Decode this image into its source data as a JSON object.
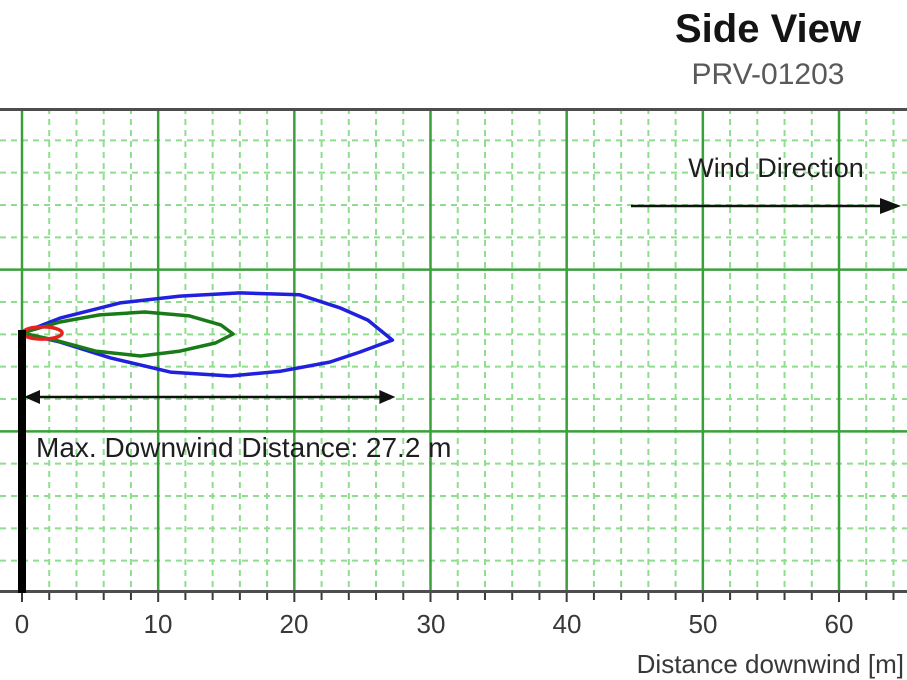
{
  "header": {
    "title": "Side View",
    "subtitle": "PRV-01203"
  },
  "annotations": {
    "wind_direction": "Wind Direction",
    "max_downwind": "Max. Downwind Distance: 27.2 m"
  },
  "x_axis": {
    "label": "Distance downwind [m]",
    "tick_labels": [
      "0",
      "10",
      "20",
      "30",
      "40",
      "50",
      "60"
    ]
  },
  "colors": {
    "grid_major": "#3aa03a",
    "grid_minor": "#8ede8e",
    "axis_border": "#4d4d4d",
    "tick": "#3a3a3a",
    "arrow": "#111111",
    "stack": "#000000",
    "contour_red": "#e82020",
    "contour_green": "#1a7a1a",
    "contour_blue": "#2020dd"
  },
  "chart_data": {
    "type": "line",
    "title": "Side View",
    "subtitle": "PRV-01203",
    "xlabel": "Distance downwind [m]",
    "x_ticks": [
      0,
      10,
      20,
      30,
      40,
      50,
      60
    ],
    "xlim": [
      -1.6,
      65
    ],
    "x_minor_step_m": 2,
    "ylabel": "",
    "y_axis_note": "vertical axis unlabeled in image; heights given in grid divisions relative to release point",
    "release_height_div": 8.0,
    "grid": "major solid green + minor dashed light-green",
    "legend_position": "none",
    "wind_direction": "left to right",
    "max_downwind_distance_m": 27.2,
    "series": [
      {
        "name": "blue-outer-concentration-contour",
        "color": "#2020dd",
        "max_downwind_m": 27.2,
        "outline_m_div": [
          [
            0,
            0
          ],
          [
            2.8,
            0.46
          ],
          [
            7.2,
            0.93
          ],
          [
            11.6,
            1.14
          ],
          [
            16,
            1.24
          ],
          [
            20.4,
            1.18
          ],
          [
            23.4,
            0.77
          ],
          [
            25.4,
            0.4
          ],
          [
            27.2,
            -0.22
          ],
          [
            24.8,
            -0.59
          ],
          [
            22.6,
            -0.9
          ],
          [
            19,
            -1.18
          ],
          [
            15.3,
            -1.33
          ],
          [
            10.9,
            -1.21
          ],
          [
            6.5,
            -0.77
          ],
          [
            2.8,
            -0.28
          ]
        ]
      },
      {
        "name": "green-middle-concentration-contour",
        "color": "#1a7a1a",
        "max_downwind_m": 15.5,
        "outline_m_div": [
          [
            0,
            0
          ],
          [
            2.8,
            0.34
          ],
          [
            5.7,
            0.56
          ],
          [
            9,
            0.65
          ],
          [
            12.3,
            0.53
          ],
          [
            14.6,
            0.25
          ],
          [
            15.5,
            -0.03
          ],
          [
            14.2,
            -0.31
          ],
          [
            11.6,
            -0.56
          ],
          [
            8.7,
            -0.71
          ],
          [
            5.4,
            -0.56
          ],
          [
            2.4,
            -0.22
          ]
        ]
      },
      {
        "name": "red-inner-concentration-contour",
        "color": "#e82020",
        "max_downwind_m": 3.0,
        "shape": "ellipse",
        "center_m_div": [
          1.5,
          0
        ],
        "rx_m": 1.45,
        "ry_div": 0.19
      }
    ]
  }
}
